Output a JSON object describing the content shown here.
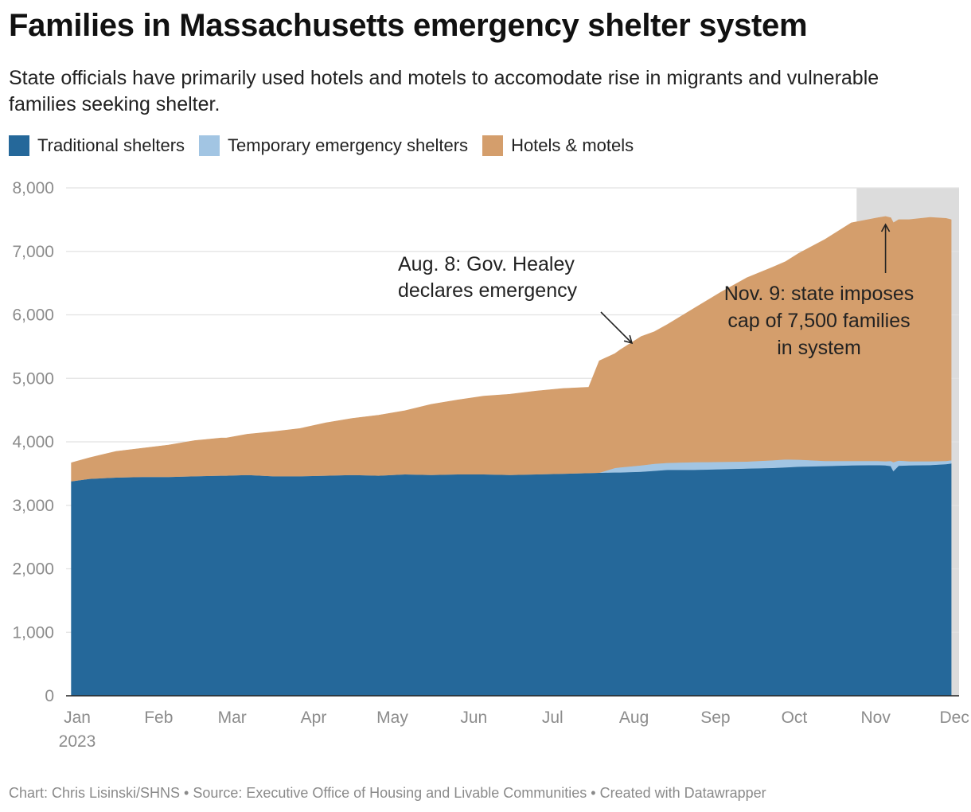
{
  "header": {
    "title": "Families in Massachusetts emergency shelter system",
    "subtitle": "State officials have primarily used hotels and motels to accomodate rise in migrants and vulnerable families seeking shelter."
  },
  "legend": [
    {
      "label": "Traditional shelters",
      "color": "#25689a"
    },
    {
      "label": "Temporary emergency shelters",
      "color": "#a2c5e3"
    },
    {
      "label": "Hotels & motels",
      "color": "#d49e6c"
    }
  ],
  "colors": {
    "traditional": "#25689a",
    "temporary": "#a2c5e3",
    "hotels": "#d49e6c",
    "highlight": "#dcdcdc",
    "gridline": "#e2e2e2",
    "axis": "#222222"
  },
  "footer": {
    "text": "Chart: Chris Lisinski/SHNS • Source: Executive Office of Housing and Livable Communities • Created with Datawrapper"
  },
  "chart_data": {
    "type": "area",
    "stacked": true,
    "title": "Families in Massachusetts emergency shelter system",
    "ylim": [
      0,
      8000
    ],
    "y_ticks": [
      0,
      1000,
      2000,
      3000,
      4000,
      5000,
      6000,
      7000,
      8000
    ],
    "y_tick_labels": [
      "0",
      "1,000",
      "2,000",
      "3,000",
      "4,000",
      "5,000",
      "6,000",
      "7,000",
      "8,000"
    ],
    "x_ticks": [
      {
        "label": "Jan",
        "label2": "2023",
        "day": 1
      },
      {
        "label": "Feb",
        "day": 32
      },
      {
        "label": "Mar",
        "day": 60
      },
      {
        "label": "Apr",
        "day": 91
      },
      {
        "label": "May",
        "day": 121
      },
      {
        "label": "Jun",
        "day": 152
      },
      {
        "label": "Jul",
        "day": 182
      },
      {
        "label": "Aug",
        "day": 213
      },
      {
        "label": "Sep",
        "day": 244
      },
      {
        "label": "Oct",
        "day": 274
      },
      {
        "label": "Nov",
        "day": 305
      },
      {
        "label": "Dec",
        "day": 335
      }
    ],
    "x_domain": [
      1,
      341
    ],
    "highlight_range_days": [
      302,
      341
    ],
    "x_day": [
      3,
      10,
      20,
      30,
      40,
      50,
      60,
      62,
      70,
      80,
      90,
      100,
      110,
      120,
      130,
      140,
      150,
      160,
      170,
      180,
      190,
      200,
      204,
      210,
      212,
      220,
      225,
      230,
      240,
      250,
      260,
      270,
      275,
      280,
      290,
      300,
      310,
      313,
      315,
      316,
      318,
      322,
      330,
      336,
      338
    ],
    "series": [
      {
        "name": "Traditional shelters",
        "values": [
          3380,
          3420,
          3440,
          3450,
          3450,
          3460,
          3470,
          3470,
          3480,
          3460,
          3460,
          3470,
          3480,
          3470,
          3490,
          3480,
          3490,
          3490,
          3480,
          3490,
          3500,
          3510,
          3515,
          3520,
          3520,
          3530,
          3545,
          3560,
          3560,
          3570,
          3580,
          3590,
          3600,
          3610,
          3620,
          3630,
          3635,
          3630,
          3620,
          3540,
          3625,
          3630,
          3635,
          3650,
          3660
        ]
      },
      {
        "name": "Temporary emergency shelters",
        "values": [
          0,
          0,
          0,
          0,
          0,
          0,
          0,
          0,
          0,
          0,
          0,
          0,
          0,
          0,
          0,
          0,
          0,
          0,
          0,
          0,
          0,
          0,
          0,
          70,
          80,
          100,
          110,
          110,
          120,
          115,
          110,
          120,
          125,
          110,
          80,
          70,
          65,
          65,
          80,
          140,
          80,
          65,
          60,
          50,
          50
        ]
      },
      {
        "name": "Hotels & motels",
        "values": [
          290,
          330,
          410,
          450,
          500,
          560,
          590,
          590,
          640,
          700,
          750,
          830,
          890,
          950,
          1000,
          1110,
          1170,
          1230,
          1270,
          1310,
          1340,
          1350,
          1760,
          1800,
          1850,
          2030,
          2080,
          2180,
          2420,
          2665,
          2890,
          3040,
          3115,
          3250,
          3490,
          3750,
          3830,
          3855,
          3830,
          3770,
          3795,
          3805,
          3840,
          3820,
          3790
        ]
      }
    ],
    "annotations": [
      {
        "lines": [
          "Aug. 8: Gov. Healey",
          "declares emergency"
        ],
        "day": 220
      },
      {
        "lines": [
          "Nov. 9: state imposes",
          "cap of 7,500 families",
          "in system"
        ],
        "day": 313
      }
    ]
  }
}
